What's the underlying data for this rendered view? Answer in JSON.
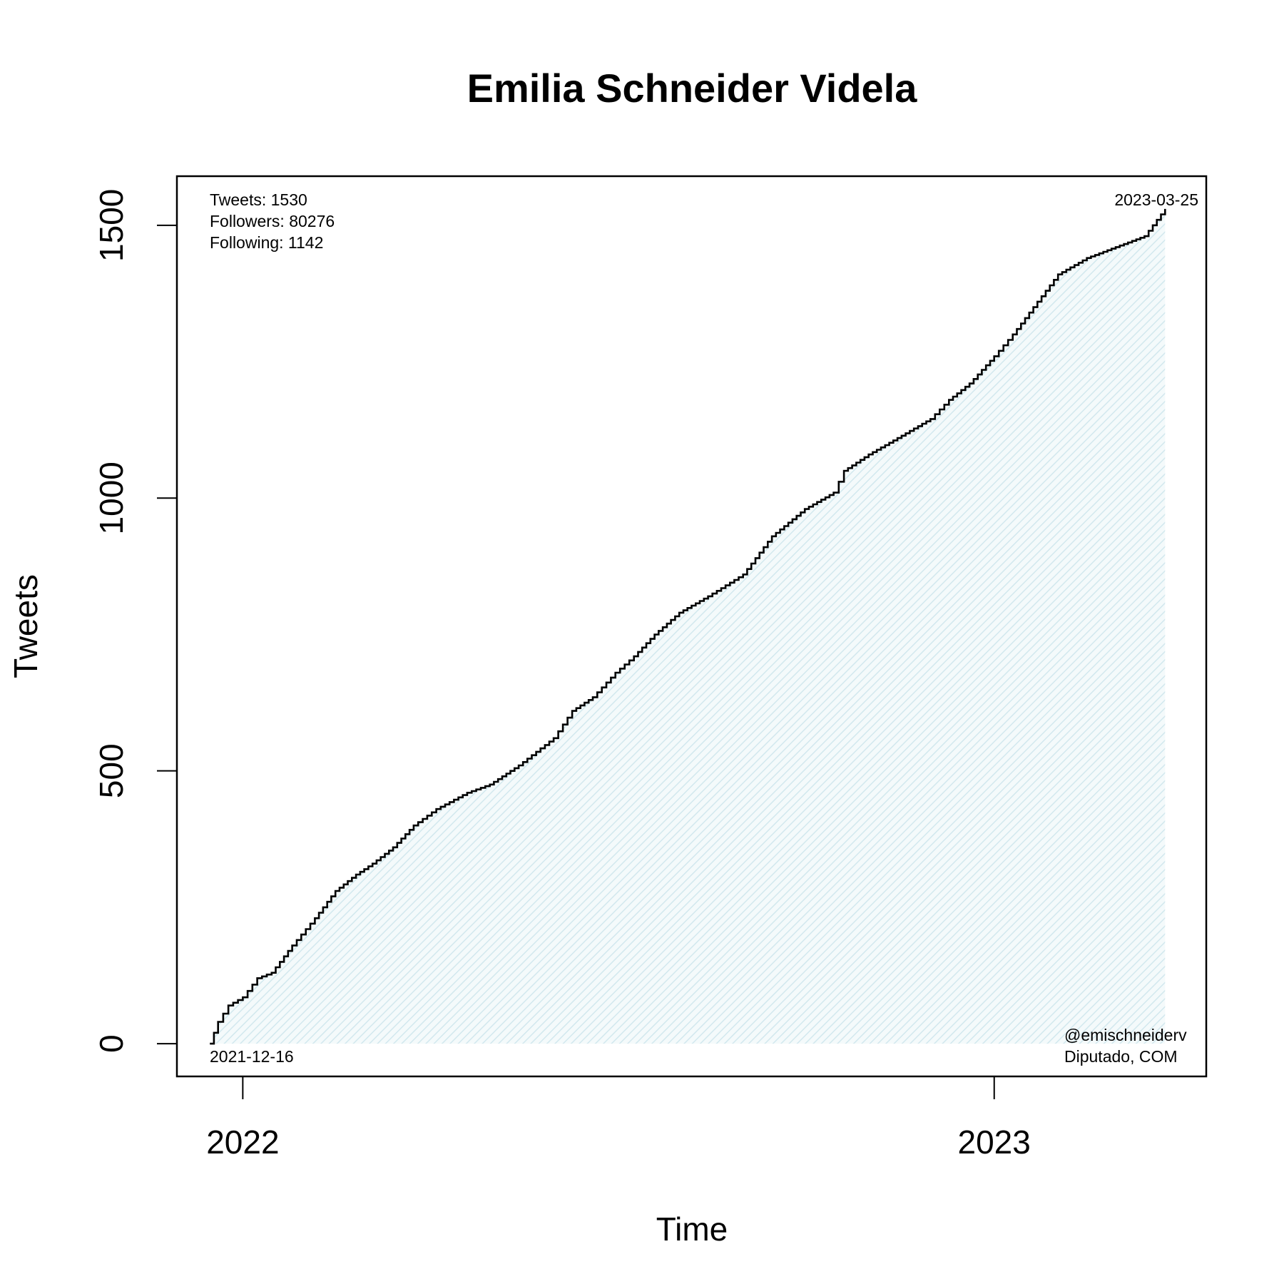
{
  "chart_data": {
    "type": "area",
    "title": "Emilia Schneider Videla",
    "xlabel": "Time",
    "ylabel": "Tweets",
    "x_ticks": [
      {
        "label": "2022",
        "date": "2022-01-01"
      },
      {
        "label": "2023",
        "date": "2023-01-01"
      }
    ],
    "y_ticks": [
      0,
      500,
      1000,
      1500
    ],
    "xlim": [
      "2021-11-30",
      "2023-04-14"
    ],
    "ylim": [
      -60,
      1590
    ],
    "grid": false,
    "legend": "none",
    "colors": {
      "line": "#000000",
      "fill": "#e6f3f6"
    },
    "stats": {
      "tweets": "Tweets: 1530",
      "followers": "Followers: 80276",
      "following": "Following: 1142"
    },
    "start_label": "2021-12-16",
    "end_label": "2023-03-25",
    "handle": "@emischneiderv",
    "role": "Diputado, COM",
    "series": [
      {
        "x": [
          "2021-12-16",
          "2021-12-20",
          "2021-12-25",
          "2022-01-01",
          "2022-01-08",
          "2022-01-15",
          "2022-01-25",
          "2022-02-05",
          "2022-02-15",
          "2022-02-25",
          "2022-03-05",
          "2022-03-15",
          "2022-03-25",
          "2022-04-05",
          "2022-04-20",
          "2022-05-01",
          "2022-05-15",
          "2022-06-01",
          "2022-06-10",
          "2022-06-20",
          "2022-07-01",
          "2022-07-10",
          "2022-07-20",
          "2022-08-01",
          "2022-08-15",
          "2022-09-01",
          "2022-09-15",
          "2022-10-01",
          "2022-10-15",
          "2022-10-20",
          "2022-11-01",
          "2022-11-15",
          "2022-12-01",
          "2022-12-10",
          "2022-12-20",
          "2023-01-01",
          "2023-01-10",
          "2023-01-20",
          "2023-02-01",
          "2023-02-15",
          "2023-03-01",
          "2023-03-15",
          "2023-03-25"
        ],
        "y": [
          0,
          40,
          70,
          85,
          120,
          130,
          180,
          230,
          280,
          310,
          330,
          360,
          400,
          430,
          460,
          475,
          510,
          560,
          610,
          635,
          680,
          710,
          750,
          790,
          820,
          860,
          930,
          980,
          1010,
          1050,
          1080,
          1110,
          1145,
          1180,
          1210,
          1260,
          1300,
          1350,
          1410,
          1440,
          1460,
          1480,
          1530
        ]
      }
    ]
  }
}
